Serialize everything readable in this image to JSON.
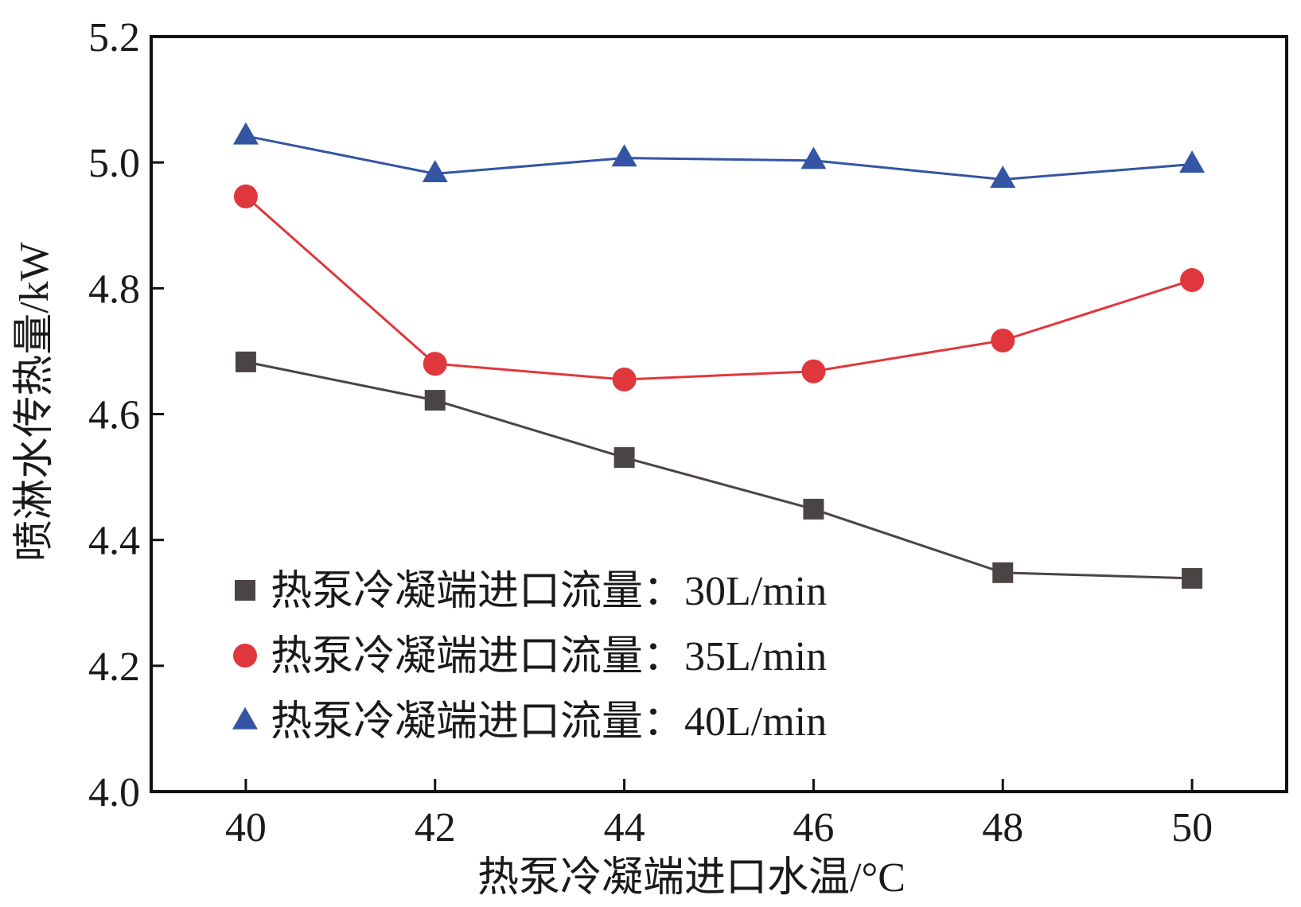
{
  "chart_data": {
    "type": "line",
    "xlabel": "热泵冷凝端进口水温/°C",
    "ylabel": "喷淋水传热量/kW",
    "x": [
      40,
      42,
      44,
      46,
      48,
      50
    ],
    "xticks": [
      "40",
      "42",
      "44",
      "46",
      "48",
      "50"
    ],
    "yticks": [
      "4.0",
      "4.2",
      "4.4",
      "4.6",
      "4.8",
      "5.0",
      "5.2"
    ],
    "xlim": [
      39,
      51
    ],
    "ylim": [
      4.0,
      5.2
    ],
    "grid": false,
    "legend_position": "bottom-left",
    "series": [
      {
        "name": "热泵冷凝端进口流量：30L/min",
        "marker": "square",
        "color": "#4a4544",
        "values": [
          4.683,
          4.622,
          4.531,
          4.449,
          4.348,
          4.339
        ]
      },
      {
        "name": "热泵冷凝端进口流量：35L/min",
        "marker": "circle",
        "color": "#e0373c",
        "values": [
          4.946,
          4.68,
          4.655,
          4.668,
          4.717,
          4.813
        ]
      },
      {
        "name": "热泵冷凝端进口流量：40L/min",
        "marker": "triangle",
        "color": "#3454a4",
        "values": [
          5.042,
          4.982,
          5.007,
          5.003,
          4.973,
          4.997
        ]
      }
    ]
  }
}
